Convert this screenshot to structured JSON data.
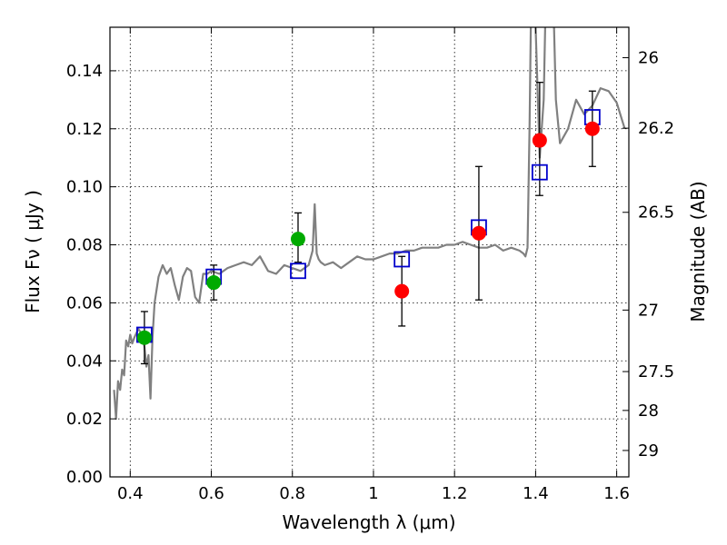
{
  "chart_data": {
    "type": "scatter",
    "title": "",
    "xlabel": "Wavelength  λ (μm)",
    "ylabel": "Flux  Fν  ( μJy )",
    "y2label": "Magnitude (AB)",
    "xlim": [
      0.35,
      1.63
    ],
    "ylim": [
      0.0,
      0.155
    ],
    "grid": true,
    "x_ticks": [
      {
        "value": 0.4,
        "label": "0.4"
      },
      {
        "value": 0.6,
        "label": "0.6"
      },
      {
        "value": 0.8,
        "label": "0.8"
      },
      {
        "value": 1.0,
        "label": "1"
      },
      {
        "value": 1.2,
        "label": "1.2"
      },
      {
        "value": 1.4,
        "label": "1.4"
      },
      {
        "value": 1.6,
        "label": "1.6"
      }
    ],
    "y_ticks": [
      {
        "value": 0.0,
        "label": "0.00"
      },
      {
        "value": 0.02,
        "label": "0.02"
      },
      {
        "value": 0.04,
        "label": "0.04"
      },
      {
        "value": 0.06,
        "label": "0.06"
      },
      {
        "value": 0.08,
        "label": "0.08"
      },
      {
        "value": 0.1,
        "label": "0.10"
      },
      {
        "value": 0.12,
        "label": "0.12"
      },
      {
        "value": 0.14,
        "label": "0.14"
      }
    ],
    "y2_ticks": [
      {
        "label": "26",
        "flux": 0.1445
      },
      {
        "label": "26.2",
        "flux": 0.1202
      },
      {
        "label": "26.5",
        "flux": 0.0912
      },
      {
        "label": "27",
        "flux": 0.0575
      },
      {
        "label": "27.5",
        "flux": 0.0363
      },
      {
        "label": "28",
        "flux": 0.0229
      },
      {
        "label": "29",
        "flux": 0.0091
      }
    ],
    "series": [
      {
        "type": "line",
        "color": "#808080",
        "x": [
          0.36,
          0.365,
          0.37,
          0.375,
          0.38,
          0.385,
          0.39,
          0.395,
          0.4,
          0.405,
          0.41,
          0.42,
          0.43,
          0.435,
          0.44,
          0.445,
          0.45,
          0.455,
          0.46,
          0.47,
          0.48,
          0.49,
          0.5,
          0.51,
          0.52,
          0.53,
          0.54,
          0.55,
          0.56,
          0.57,
          0.58,
          0.59,
          0.6,
          0.62,
          0.64,
          0.66,
          0.68,
          0.7,
          0.72,
          0.74,
          0.76,
          0.78,
          0.8,
          0.82,
          0.84,
          0.85,
          0.855,
          0.86,
          0.865,
          0.87,
          0.88,
          0.9,
          0.92,
          0.94,
          0.96,
          0.98,
          1.0,
          1.02,
          1.04,
          1.06,
          1.08,
          1.1,
          1.12,
          1.14,
          1.16,
          1.18,
          1.2,
          1.22,
          1.24,
          1.26,
          1.28,
          1.3,
          1.32,
          1.34,
          1.36,
          1.37,
          1.375,
          1.38,
          1.385,
          1.39,
          1.395,
          1.4,
          1.41,
          1.42,
          1.43,
          1.44,
          1.45,
          1.46,
          1.48,
          1.5,
          1.52,
          1.54,
          1.56,
          1.58,
          1.6,
          1.62
        ],
        "y": [
          0.03,
          0.02,
          0.033,
          0.03,
          0.037,
          0.035,
          0.047,
          0.045,
          0.049,
          0.046,
          0.048,
          0.051,
          0.049,
          0.045,
          0.038,
          0.042,
          0.027,
          0.048,
          0.06,
          0.069,
          0.073,
          0.07,
          0.072,
          0.066,
          0.061,
          0.069,
          0.072,
          0.071,
          0.062,
          0.06,
          0.07,
          0.07,
          0.071,
          0.07,
          0.072,
          0.073,
          0.074,
          0.073,
          0.076,
          0.071,
          0.07,
          0.073,
          0.072,
          0.071,
          0.073,
          0.078,
          0.094,
          0.077,
          0.075,
          0.074,
          0.073,
          0.074,
          0.072,
          0.074,
          0.076,
          0.075,
          0.075,
          0.076,
          0.077,
          0.077,
          0.078,
          0.078,
          0.079,
          0.079,
          0.079,
          0.08,
          0.08,
          0.081,
          0.08,
          0.079,
          0.079,
          0.08,
          0.078,
          0.079,
          0.078,
          0.077,
          0.076,
          0.079,
          0.12,
          0.175,
          0.19,
          0.155,
          0.11,
          0.13,
          0.2,
          0.185,
          0.13,
          0.115,
          0.12,
          0.13,
          0.125,
          0.128,
          0.134,
          0.133,
          0.129,
          0.12
        ]
      },
      {
        "type": "scatter",
        "marker": "open-square",
        "color": "#0000cc",
        "x": [
          0.435,
          0.606,
          0.814,
          1.07,
          1.26,
          1.41,
          1.54
        ],
        "y": [
          0.049,
          0.069,
          0.071,
          0.075,
          0.086,
          0.105,
          0.124
        ]
      },
      {
        "type": "scatter",
        "marker": "filled-circle",
        "color": "#00aa00",
        "x": [
          0.435,
          0.606,
          0.814
        ],
        "y": [
          0.048,
          0.067,
          0.082
        ]
      },
      {
        "type": "scatter",
        "marker": "filled-circle",
        "color": "#ff0000",
        "x": [
          1.07,
          1.26,
          1.41,
          1.54
        ],
        "y": [
          0.064,
          0.084,
          0.116,
          0.12
        ]
      },
      {
        "type": "errorbar",
        "color": "#000000",
        "x": [
          0.435,
          0.606,
          0.814,
          1.07,
          1.26,
          1.41,
          1.54
        ],
        "y_low": [
          0.039,
          0.061,
          0.074,
          0.052,
          0.061,
          0.097,
          0.107
        ],
        "y_high": [
          0.057,
          0.073,
          0.091,
          0.076,
          0.107,
          0.136,
          0.133
        ]
      }
    ]
  }
}
